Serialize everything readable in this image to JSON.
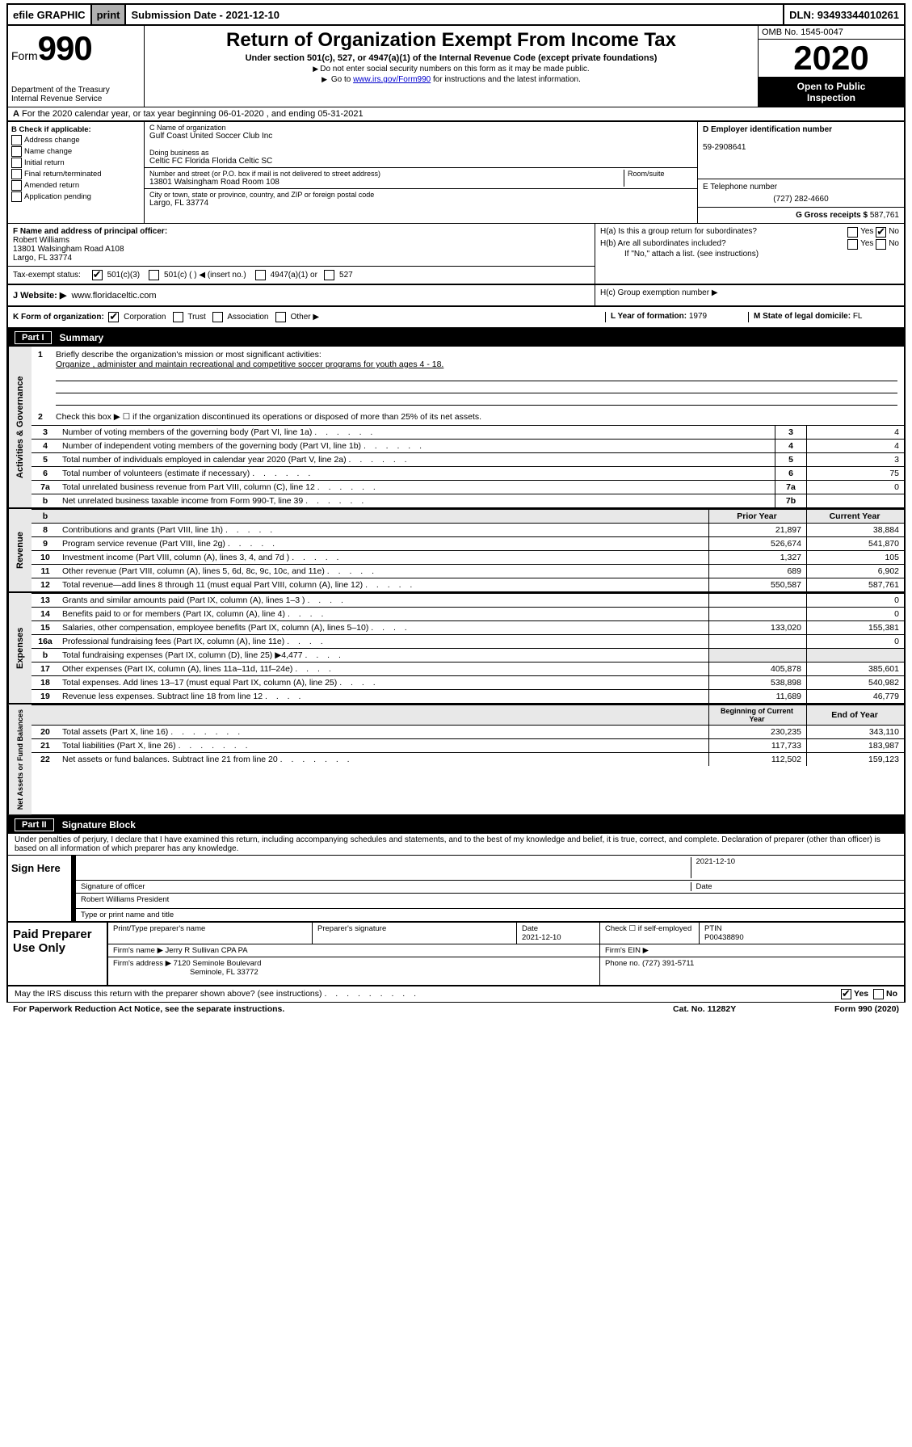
{
  "topbar": {
    "efile": "efile GRAPHIC",
    "print": "print",
    "submission": "Submission Date - 2021-12-10",
    "dln": "DLN: 93493344010261"
  },
  "header": {
    "form_label": "Form",
    "form_number": "990",
    "dept": "Department of the Treasury",
    "irs": "Internal Revenue Service",
    "title": "Return of Organization Exempt From Income Tax",
    "subtitle": "Under section 501(c), 527, or 4947(a)(1) of the Internal Revenue Code (except private foundations)",
    "note1": "Do not enter social security numbers on this form as it may be made public.",
    "note2_prefix": "Go to ",
    "note2_link": "www.irs.gov/Form990",
    "note2_suffix": " for instructions and the latest information.",
    "omb": "OMB No. 1545-0047",
    "year": "2020",
    "open1": "Open to Public",
    "open2": "Inspection"
  },
  "line_a": "For the 2020 calendar year, or tax year beginning 06-01-2020    , and ending 05-31-2021",
  "box_b": {
    "label": "B Check if applicable:",
    "items": [
      "Address change",
      "Name change",
      "Initial return",
      "Final return/terminated",
      "Amended return",
      "Application pending"
    ]
  },
  "box_c": {
    "name_label": "C Name of organization",
    "name": "Gulf Coast United Soccer Club Inc",
    "dba_label": "Doing business as",
    "dba": "Celtic FC Florida Florida Celtic SC",
    "addr_label": "Number and street (or P.O. box if mail is not delivered to street address)",
    "room_label": "Room/suite",
    "addr": "13801 Walsingham Road Room 108",
    "city_label": "City or town, state or province, country, and ZIP or foreign postal code",
    "city": "Largo, FL  33774"
  },
  "box_d": {
    "label": "D Employer identification number",
    "value": "59-2908641"
  },
  "box_e": {
    "label": "E Telephone number",
    "value": "(727) 282-4660"
  },
  "box_g": {
    "label": "G Gross receipts $",
    "value": "587,761"
  },
  "box_f": {
    "label": "F  Name and address of principal officer:",
    "name": "Robert Williams",
    "addr1": "13801 Walsingham Road A108",
    "addr2": "Largo, FL  33774"
  },
  "box_h": {
    "a": "H(a)  Is this a group return for subordinates?",
    "b": "H(b)  Are all subordinates included?",
    "b_note": "If \"No,\" attach a list. (see instructions)",
    "c": "H(c)  Group exemption number ▶",
    "yes": "Yes",
    "no": "No"
  },
  "tax_exempt": {
    "label": "Tax-exempt status:",
    "opt1": "501(c)(3)",
    "opt2": "501(c) (  ) ◀ (insert no.)",
    "opt3": "4947(a)(1) or",
    "opt4": "527"
  },
  "box_j": {
    "label": "J   Website: ▶",
    "value": "www.floridaceltic.com"
  },
  "box_k": {
    "label": "K Form of organization:",
    "corp": "Corporation",
    "trust": "Trust",
    "assoc": "Association",
    "other": "Other ▶"
  },
  "box_l": {
    "label": "L Year of formation:",
    "value": "1979"
  },
  "box_m": {
    "label": "M State of legal domicile:",
    "value": "FL"
  },
  "part1": {
    "header_num": "Part I",
    "header_title": "Summary",
    "side1": "Activities & Governance",
    "side2": "Revenue",
    "side3": "Expenses",
    "side4": "Net Assets or Fund Balances",
    "line1_label": "Briefly describe the organization's mission or most significant activities:",
    "line1_text": "Organize , administer and maintain recreational and competitive soccer programs for youth ages 4 - 18.",
    "line2": "Check this box ▶ ☐  if the organization discontinued its operations or disposed of more than 25% of its net assets.",
    "rows_gov": [
      {
        "n": "3",
        "d": "Number of voting members of the governing body (Part VI, line 1a)",
        "box": "3",
        "v": "4"
      },
      {
        "n": "4",
        "d": "Number of independent voting members of the governing body (Part VI, line 1b)",
        "box": "4",
        "v": "4"
      },
      {
        "n": "5",
        "d": "Total number of individuals employed in calendar year 2020 (Part V, line 2a)",
        "box": "5",
        "v": "3"
      },
      {
        "n": "6",
        "d": "Total number of volunteers (estimate if necessary)",
        "box": "6",
        "v": "75"
      },
      {
        "n": "7a",
        "d": "Total unrelated business revenue from Part VIII, column (C), line 12",
        "box": "7a",
        "v": "0"
      },
      {
        "n": "b",
        "d": "Net unrelated business taxable income from Form 990-T, line 39",
        "box": "7b",
        "v": ""
      }
    ],
    "col_prior": "Prior Year",
    "col_current": "Current Year",
    "rows_rev": [
      {
        "n": "8",
        "d": "Contributions and grants (Part VIII, line 1h)",
        "p": "21,897",
        "c": "38,884"
      },
      {
        "n": "9",
        "d": "Program service revenue (Part VIII, line 2g)",
        "p": "526,674",
        "c": "541,870"
      },
      {
        "n": "10",
        "d": "Investment income (Part VIII, column (A), lines 3, 4, and 7d )",
        "p": "1,327",
        "c": "105"
      },
      {
        "n": "11",
        "d": "Other revenue (Part VIII, column (A), lines 5, 6d, 8c, 9c, 10c, and 11e)",
        "p": "689",
        "c": "6,902"
      },
      {
        "n": "12",
        "d": "Total revenue—add lines 8 through 11 (must equal Part VIII, column (A), line 12)",
        "p": "550,587",
        "c": "587,761"
      }
    ],
    "rows_exp": [
      {
        "n": "13",
        "d": "Grants and similar amounts paid (Part IX, column (A), lines 1–3 )",
        "p": "",
        "c": "0"
      },
      {
        "n": "14",
        "d": "Benefits paid to or for members (Part IX, column (A), line 4)",
        "p": "",
        "c": "0"
      },
      {
        "n": "15",
        "d": "Salaries, other compensation, employee benefits (Part IX, column (A), lines 5–10)",
        "p": "133,020",
        "c": "155,381"
      },
      {
        "n": "16a",
        "d": "Professional fundraising fees (Part IX, column (A), line 11e)",
        "p": "",
        "c": "0"
      },
      {
        "n": "b",
        "d": "Total fundraising expenses (Part IX, column (D), line 25) ▶4,477",
        "p": "__shade__",
        "c": "__shade__"
      },
      {
        "n": "17",
        "d": "Other expenses (Part IX, column (A), lines 11a–11d, 11f–24e)",
        "p": "405,878",
        "c": "385,601"
      },
      {
        "n": "18",
        "d": "Total expenses. Add lines 13–17 (must equal Part IX, column (A), line 25)",
        "p": "538,898",
        "c": "540,982"
      },
      {
        "n": "19",
        "d": "Revenue less expenses. Subtract line 18 from line 12",
        "p": "11,689",
        "c": "46,779"
      }
    ],
    "col_begin": "Beginning of Current Year",
    "col_end": "End of Year",
    "rows_net": [
      {
        "n": "20",
        "d": "Total assets (Part X, line 16)",
        "p": "230,235",
        "c": "343,110"
      },
      {
        "n": "21",
        "d": "Total liabilities (Part X, line 26)",
        "p": "117,733",
        "c": "183,987"
      },
      {
        "n": "22",
        "d": "Net assets or fund balances. Subtract line 21 from line 20",
        "p": "112,502",
        "c": "159,123"
      }
    ]
  },
  "part2": {
    "header_num": "Part II",
    "header_title": "Signature Block",
    "perjury": "Under penalties of perjury, I declare that I have examined this return, including accompanying schedules and statements, and to the best of my knowledge and belief, it is true, correct, and complete. Declaration of preparer (other than officer) is based on all information of which preparer has any knowledge.",
    "sign_here": "Sign Here",
    "sig_officer": "Signature of officer",
    "sig_date": "2021-12-10",
    "date_label": "Date",
    "officer_name": "Robert Williams  President",
    "type_name": "Type or print name and title",
    "paid": "Paid Preparer Use Only",
    "prep_name_label": "Print/Type preparer's name",
    "prep_sig_label": "Preparer's signature",
    "prep_date": "2021-12-10",
    "check_self": "Check ☐ if self-employed",
    "ptin_label": "PTIN",
    "ptin": "P00438890",
    "firm_name_label": "Firm's name    ▶",
    "firm_name": "Jerry R Sullivan CPA PA",
    "firm_ein_label": "Firm's EIN ▶",
    "firm_addr_label": "Firm's address ▶",
    "firm_addr1": "7120 Seminole Boulevard",
    "firm_addr2": "Seminole, FL  33772",
    "firm_phone_label": "Phone no.",
    "firm_phone": "(727) 391-5711"
  },
  "discuss": {
    "text": "May the IRS discuss this return with the preparer shown above? (see instructions)",
    "yes": "Yes",
    "no": "No"
  },
  "footer": {
    "left": "For Paperwork Reduction Act Notice, see the separate instructions.",
    "mid": "Cat. No. 11282Y",
    "right": "Form 990 (2020)"
  }
}
